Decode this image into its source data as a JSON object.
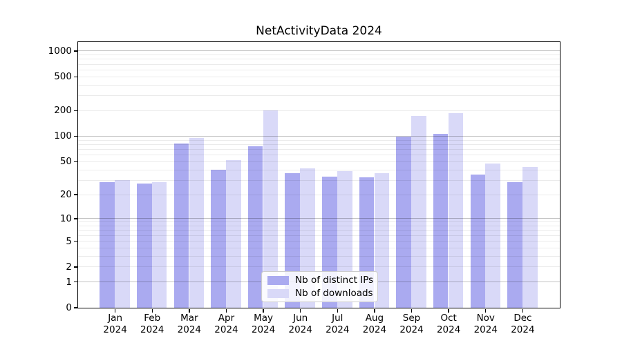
{
  "chart_data": {
    "type": "bar",
    "title": "NetActivityData 2024",
    "categories": [
      "Jan",
      "Feb",
      "Mar",
      "Apr",
      "May",
      "Jun",
      "Jul",
      "Aug",
      "Sep",
      "Oct",
      "Nov",
      "Dec"
    ],
    "year_label": "2024",
    "series": [
      {
        "name": "Nb of distinct IPs",
        "color": "#aaaaf0",
        "values": [
          28,
          27,
          82,
          40,
          76,
          36,
          33,
          32,
          98,
          105,
          35,
          28
        ]
      },
      {
        "name": "Nb of downloads",
        "color": "#d9d9f8",
        "values": [
          30,
          28,
          95,
          52,
          200,
          41,
          38,
          36,
          173,
          185,
          47,
          43
        ]
      }
    ],
    "xlabel": "",
    "ylabel": "",
    "yticks": [
      0,
      1,
      2,
      5,
      10,
      20,
      50,
      100,
      200,
      500,
      1000
    ],
    "ylim": [
      0,
      1272
    ],
    "yscale": "log1p",
    "grid": "horizontal",
    "legend_position": "lower center"
  }
}
